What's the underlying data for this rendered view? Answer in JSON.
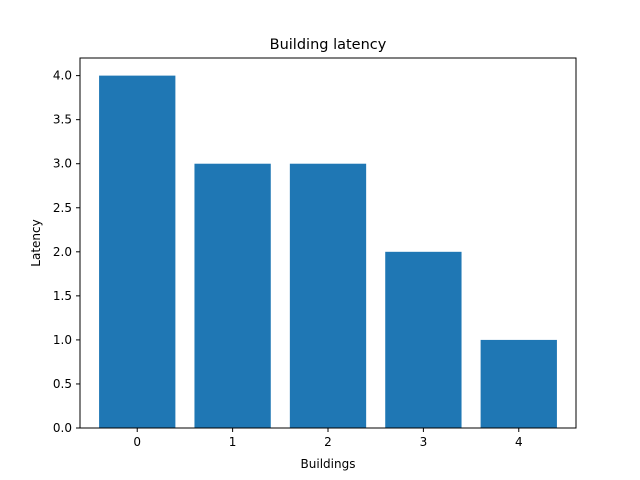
{
  "chart_data": {
    "type": "bar",
    "title": "Building latency",
    "xlabel": "Buildings",
    "ylabel": "Latency",
    "categories": [
      "0",
      "1",
      "2",
      "3",
      "4"
    ],
    "values": [
      4.0,
      3.0,
      3.0,
      2.0,
      1.0
    ],
    "ylim": [
      0,
      4.2
    ],
    "yticks": [
      "0.0",
      "0.5",
      "1.0",
      "1.5",
      "2.0",
      "2.5",
      "3.0",
      "3.5",
      "4.0"
    ],
    "bar_color": "#1f77b4",
    "grid": false,
    "legend": "none"
  }
}
